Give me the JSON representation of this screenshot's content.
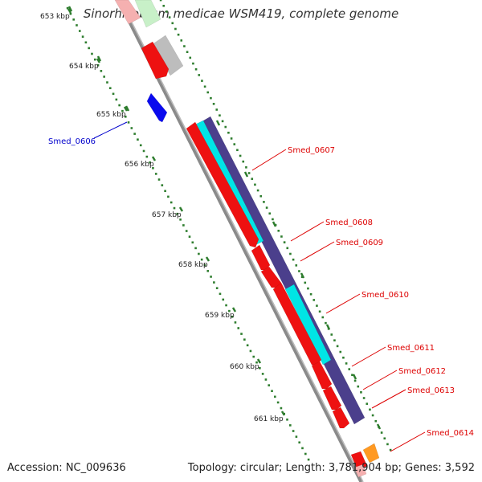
{
  "title": "Sinorhizobium medicae WSM419, complete genome",
  "footer": {
    "accession": "Accession: NC_009636",
    "summary": "Topology: circular; Length: 3,781,904 bp; Genes: 3,592"
  },
  "ticks": [
    "653 kbp",
    "654 kbp",
    "655 kbp",
    "656 kbp",
    "657 kbp",
    "658 kbp",
    "659 kbp",
    "660 kbp",
    "661 kbp"
  ],
  "genes": [
    {
      "label": "Smed_0606",
      "color": "#0000cc"
    },
    {
      "label": "Smed_0607",
      "color": "#dd0000"
    },
    {
      "label": "Smed_0608",
      "color": "#dd0000"
    },
    {
      "label": "Smed_0609",
      "color": "#dd0000"
    },
    {
      "label": "Smed_0610",
      "color": "#dd0000"
    },
    {
      "label": "Smed_0611",
      "color": "#dd0000"
    },
    {
      "label": "Smed_0612",
      "color": "#dd0000"
    },
    {
      "label": "Smed_0613",
      "color": "#dd0000"
    },
    {
      "label": "Smed_0614",
      "color": "#dd0000"
    }
  ],
  "colors": {
    "cds": "#ee1111",
    "rrna": "#00e5e5",
    "gene": "#4b3f8c",
    "blue_gene": "#0a0aee",
    "pseudo": "#bdbdbd",
    "misc": "#ff9922",
    "backbone": "#888888",
    "gc_dots": "#2e7d2e"
  }
}
